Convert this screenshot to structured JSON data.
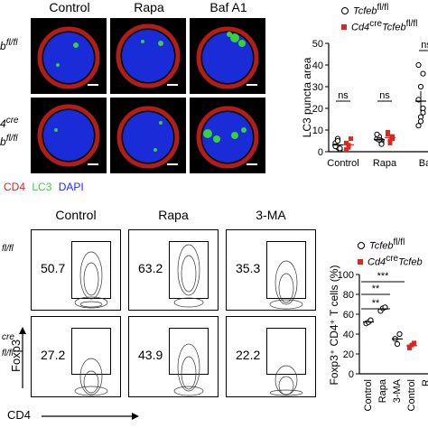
{
  "panel_top": {
    "columns": [
      "Control",
      "Rapa",
      "Baf A1"
    ],
    "row_labels": [
      "b",
      "4",
      "b"
    ],
    "row_label_sup": [
      "fl/fl",
      "cre",
      "fl/fl"
    ],
    "stain_legend": {
      "cd4": "CD4",
      "lc3": "LC3",
      "dapi": "DAPI"
    },
    "colors": {
      "cd4": "#e0241e",
      "lc3": "#38d13a",
      "dapi": "#1a2bff"
    }
  },
  "chart_top": {
    "ylabel": "LC3 puncta area",
    "yticks": [
      "0",
      "10",
      "20",
      "30",
      "40",
      "50"
    ],
    "ylim": [
      0,
      50
    ],
    "categories": [
      "Control",
      "Rapa",
      "Baf "
    ],
    "sig": [
      "ns",
      "ns",
      "ns"
    ],
    "legend": [
      {
        "text": "Tcfeb",
        "sup": "fl/fl"
      },
      {
        "text": "Cd4",
        "sup": "cre",
        "text2": "Tcfeb",
        "sup2": "fl/fl"
      }
    ],
    "series": [
      {
        "name": "Tcfeb fl/fl",
        "color": "#000000",
        "marker": "circle-open",
        "points": [
          [
            0,
            3
          ],
          [
            0,
            2
          ],
          [
            0,
            1
          ],
          [
            0,
            4
          ],
          [
            0,
            6
          ],
          [
            0,
            1.5
          ],
          [
            0,
            2.5
          ],
          [
            0,
            5
          ],
          [
            1,
            5
          ],
          [
            1,
            6
          ],
          [
            1,
            7
          ],
          [
            1,
            4
          ],
          [
            1,
            8
          ],
          [
            1,
            5.5
          ],
          [
            1,
            3.5
          ],
          [
            2,
            12
          ],
          [
            2,
            16
          ],
          [
            2,
            20
          ],
          [
            2,
            24
          ],
          [
            2,
            30
          ],
          [
            2,
            36
          ],
          [
            2,
            40
          ],
          [
            2,
            14
          ],
          [
            2,
            18
          ]
        ]
      },
      {
        "name": "Cd4cre Tcfeb fl/fl",
        "color": "#e0241e",
        "marker": "square-filled",
        "points": [
          [
            0,
            4
          ],
          [
            0,
            2
          ],
          [
            0,
            6
          ],
          [
            0,
            1
          ],
          [
            0,
            3
          ],
          [
            1,
            6
          ],
          [
            1,
            8
          ],
          [
            1,
            5
          ],
          [
            1,
            7
          ],
          [
            1,
            9
          ],
          [
            1,
            4
          ]
        ]
      }
    ]
  },
  "panel_bottom": {
    "columns": [
      "Control",
      "Rapa",
      "3-MA"
    ],
    "values_row1": [
      "50.7",
      "63.2",
      "35.3"
    ],
    "values_row2": [
      "27.2",
      "43.9",
      "22.2"
    ],
    "row_label_sup": [
      "fl/fl",
      "cre",
      "fl/fl"
    ],
    "yaxis": "Foxp3",
    "xaxis": "CD4"
  },
  "chart_bottom": {
    "ylabel": "Foxp3⁺ CD4⁺ T cells (%)",
    "yticks": [
      "0",
      "20",
      "40",
      "60",
      "80",
      "100"
    ],
    "ylim": [
      0,
      100
    ],
    "categories": [
      "Control",
      "Rapa",
      "3-MA",
      "Control",
      "R"
    ],
    "sig": [
      "***",
      "**",
      "**"
    ],
    "legend": [
      {
        "text": "Tcfeb",
        "sup": "fl/fl"
      },
      {
        "text": "Cd4",
        "sup": "cre",
        "text2": "Tcfeb",
        "sup2": ""
      }
    ],
    "series": [
      {
        "name": "Tcfeb fl/fl",
        "color": "#000000",
        "marker": "circle-open",
        "points": [
          [
            0,
            50.7
          ],
          [
            0,
            52
          ],
          [
            0,
            54
          ],
          [
            1,
            63.2
          ],
          [
            1,
            66
          ],
          [
            1,
            67
          ],
          [
            2,
            35.3
          ],
          [
            2,
            30
          ],
          [
            2,
            40
          ]
        ]
      },
      {
        "name": "Cd4cre Tcfeb",
        "color": "#e0241e",
        "marker": "square-filled",
        "points": [
          [
            3,
            27.2
          ],
          [
            3,
            29
          ],
          [
            3,
            31
          ],
          [
            3,
            26
          ]
        ]
      }
    ]
  }
}
